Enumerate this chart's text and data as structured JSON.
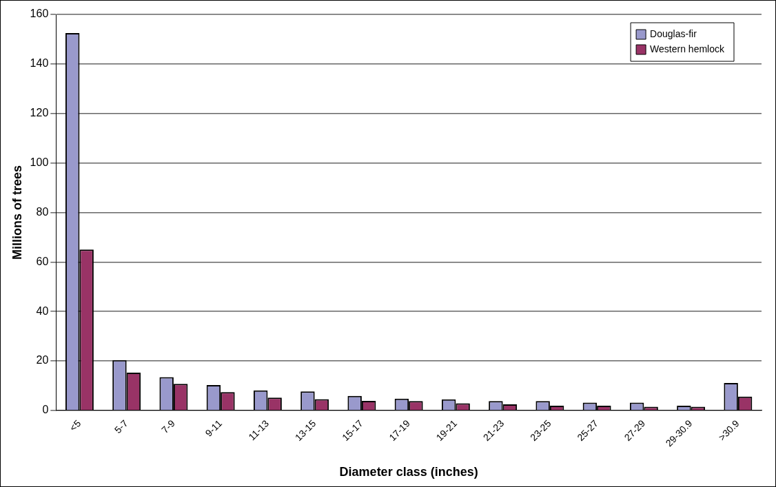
{
  "chart_data": {
    "type": "bar",
    "xlabel": "Diameter class (inches)",
    "ylabel": "Millions of trees",
    "categories": [
      "<5",
      "5-7",
      "7-9",
      "9-11",
      "11-13",
      "13-15",
      "15-17",
      "17-19",
      "19-21",
      "21-23",
      "23-25",
      "25-27",
      "27-29",
      "29-30.9",
      ">30.9"
    ],
    "series": [
      {
        "name": "Douglas-fir",
        "color": "#9999cc",
        "values": [
          152.5,
          20.4,
          13.5,
          10.3,
          8.1,
          7.7,
          5.9,
          4.8,
          4.5,
          3.8,
          3.8,
          3.2,
          3.2,
          1.9,
          11.1
        ]
      },
      {
        "name": "Western hemlock",
        "color": "#993366",
        "values": [
          65,
          15.3,
          10.8,
          7.4,
          5.2,
          4.6,
          3.9,
          3.8,
          2.9,
          2.5,
          1.9,
          1.9,
          1.5,
          1.5,
          5.6
        ]
      }
    ],
    "ylim": [
      0,
      160
    ],
    "yticks": [
      0,
      20,
      40,
      60,
      80,
      100,
      120,
      140,
      160
    ],
    "grid": "y",
    "legend": "top right"
  }
}
